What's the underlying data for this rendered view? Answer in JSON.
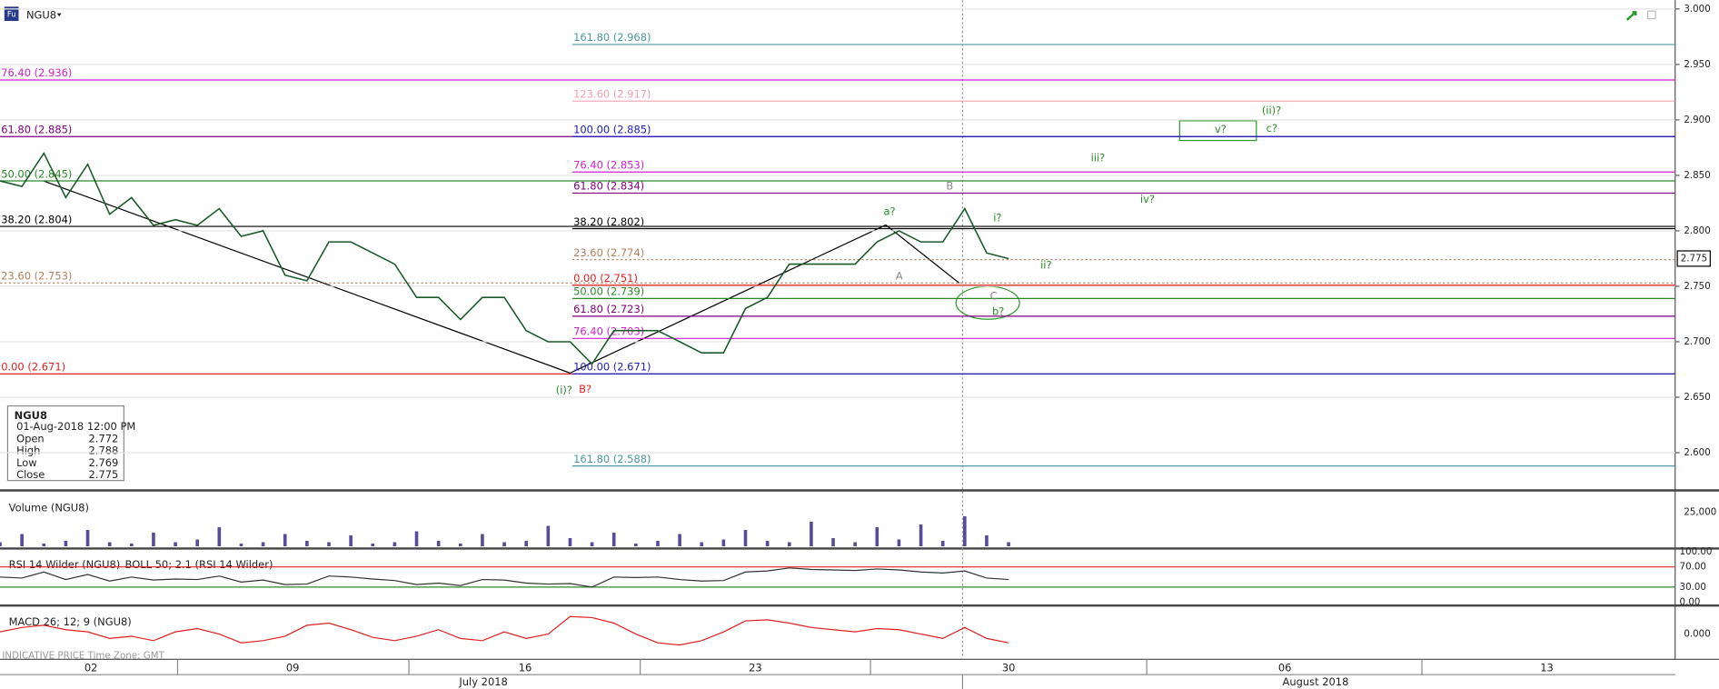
{
  "symbol": "NGU8",
  "price_axis": {
    "ylim": [
      2.567,
      3.008
    ],
    "ticks": [
      {
        "value": 3.0,
        "label": "3.000"
      },
      {
        "value": 2.95,
        "label": "2.950"
      },
      {
        "value": 2.9,
        "label": "2.900"
      },
      {
        "value": 2.85,
        "label": "2.850"
      },
      {
        "value": 2.8,
        "label": "2.800"
      },
      {
        "value": 2.75,
        "label": "2.750"
      },
      {
        "value": 2.7,
        "label": "2.700"
      },
      {
        "value": 2.65,
        "label": "2.650"
      },
      {
        "value": 2.6,
        "label": "2.600"
      }
    ]
  },
  "current_price": 2.775,
  "fib_left": [
    {
      "value": 2.936,
      "label": "76.40 (2.936)",
      "color": "#d020d0"
    },
    {
      "value": 2.885,
      "label": "61.80 (2.885)",
      "color": "#800080"
    },
    {
      "value": 2.845,
      "label": "50.00 (2.845)",
      "color": "#2a8a2a"
    },
    {
      "value": 2.804,
      "label": "38.20 (2.804)",
      "color": "#000000"
    },
    {
      "value": 2.753,
      "label": "23.60 (2.753)",
      "color": "#b08060"
    },
    {
      "value": 2.671,
      "label": "0.00 (2.671)",
      "color": "#e02020"
    }
  ],
  "fib_right": [
    {
      "value": 2.968,
      "label": "161.80 (2.968)",
      "color": "#4a9aa0"
    },
    {
      "value": 2.917,
      "label": "123.60 (2.917)",
      "color": "#f0a0b0"
    },
    {
      "value": 2.885,
      "label": "100.00 (2.885)",
      "color": "#2020c0"
    },
    {
      "value": 2.853,
      "label": "76.40 (2.853)",
      "color": "#d020d0"
    },
    {
      "value": 2.834,
      "label": "61.80 (2.834)",
      "color": "#800080"
    },
    {
      "value": 2.802,
      "label": "38.20 (2.802)",
      "color": "#000000"
    },
    {
      "value": 2.774,
      "label": "23.60 (2.774)",
      "color": "#b08060"
    },
    {
      "value": 2.751,
      "label": "0.00 (2.751)",
      "color": "#e02020"
    },
    {
      "value": 2.739,
      "label": "50.00 (2.739)",
      "color": "#2a8a2a"
    },
    {
      "value": 2.723,
      "label": "61.80 (2.723)",
      "color": "#800080"
    },
    {
      "value": 2.703,
      "label": "76.40 (2.703)",
      "color": "#d020d0"
    },
    {
      "value": 2.671,
      "label": "100.00 (2.671)",
      "color": "#2020c0"
    },
    {
      "value": 2.588,
      "label": "161.80 (2.588)",
      "color": "#4a9aa0"
    }
  ],
  "waves": [
    {
      "text": "(i)?",
      "color": "#2a8a2a"
    },
    {
      "text": "B?",
      "color": "#e02020"
    },
    {
      "text": "a?",
      "color": "#2a8a2a"
    },
    {
      "text": "B",
      "color": "#888888"
    },
    {
      "text": "A",
      "color": "#888888"
    },
    {
      "text": "i?",
      "color": "#2a8a2a"
    },
    {
      "text": "ii?",
      "color": "#2a8a2a"
    },
    {
      "text": "C",
      "color": "#888888"
    },
    {
      "text": "b?",
      "color": "#2a8a2a"
    },
    {
      "text": "iii?",
      "color": "#2a8a2a"
    },
    {
      "text": "iv?",
      "color": "#2a8a2a"
    },
    {
      "text": "v?",
      "color": "#2a8a2a"
    },
    {
      "text": "(ii)?",
      "color": "#2a8a2a"
    },
    {
      "text": "c?",
      "color": "#2a8a2a"
    }
  ],
  "price": {
    "color": "#1a5a2a",
    "values": [
      2.845,
      2.84,
      2.87,
      2.83,
      2.86,
      2.815,
      2.83,
      2.805,
      2.81,
      2.805,
      2.82,
      2.795,
      2.8,
      2.76,
      2.755,
      2.79,
      2.79,
      2.78,
      2.77,
      2.74,
      2.74,
      2.72,
      2.74,
      2.74,
      2.71,
      2.7,
      2.7,
      2.68,
      2.71,
      2.71,
      2.71,
      2.7,
      2.69,
      2.69,
      2.73,
      2.74,
      2.77,
      2.77,
      2.77,
      2.77,
      2.79,
      2.8,
      2.79,
      2.79,
      2.82,
      2.78,
      2.775
    ]
  },
  "info": {
    "title": "NGU8",
    "datetime": "01-Aug-2018 12:00 PM",
    "rows": [
      [
        "Open",
        2.772
      ],
      [
        "High",
        2.788
      ],
      [
        "Low",
        2.769
      ],
      [
        "Close",
        2.775
      ]
    ]
  },
  "volume": {
    "title": "Volume (NGU8)",
    "ylim": [
      0,
      37000
    ],
    "ticks": [
      {
        "value": 25000,
        "label": "25,000"
      }
    ],
    "color": "#5a4a9a",
    "values": [
      3000,
      9000,
      2000,
      4000,
      12000,
      3000,
      2000,
      10000,
      3000,
      5000,
      14000,
      2000,
      3000,
      9000,
      4000,
      3000,
      8000,
      2000,
      3000,
      11000,
      4000,
      2000,
      9000,
      3000,
      4000,
      15000,
      6000,
      3000,
      10000,
      2000,
      4000,
      9000,
      3000,
      5000,
      12000,
      4000,
      3000,
      18000,
      6000,
      3000,
      14000,
      5000,
      16000,
      4000,
      22000,
      8000,
      3000
    ]
  },
  "rsi": {
    "title": "RSI 14 Wilder (NGU8)",
    "boll_title": "BOLL 50; 2.1 (RSI 14 Wilder)",
    "ylim": [
      0,
      100
    ],
    "ticks": [
      {
        "value": 100,
        "label": "100.00"
      },
      {
        "value": 70,
        "label": "70.00"
      },
      {
        "value": 30,
        "label": "30.00"
      },
      {
        "value": 0,
        "label": "0.00"
      }
    ],
    "values": [
      50,
      48,
      60,
      45,
      55,
      42,
      50,
      44,
      46,
      45,
      52,
      40,
      44,
      35,
      36,
      52,
      50,
      46,
      43,
      35,
      38,
      33,
      45,
      44,
      38,
      36,
      37,
      30,
      50,
      49,
      50,
      45,
      42,
      43,
      60,
      62,
      68,
      65,
      64,
      63,
      66,
      64,
      60,
      58,
      62,
      48,
      45
    ]
  },
  "macd": {
    "title": "MACD 26; 12; 9 (NGU8)",
    "ylim": [
      -0.02,
      0.02
    ],
    "ticks": [
      {
        "value": 0,
        "label": "0.000"
      }
    ],
    "values": [
      0.002,
      0.006,
      0.008,
      0.004,
      0.002,
      -0.004,
      -0.002,
      -0.006,
      0.002,
      0.005,
      0.0,
      -0.008,
      -0.006,
      -0.002,
      0.008,
      0.01,
      0.004,
      -0.003,
      -0.006,
      -0.002,
      0.004,
      -0.004,
      -0.006,
      0.002,
      -0.004,
      0.0,
      0.016,
      0.015,
      0.01,
      0.0,
      -0.008,
      -0.01,
      -0.006,
      0.002,
      0.012,
      0.013,
      0.01,
      0.006,
      0.004,
      0.002,
      0.005,
      0.004,
      0.0,
      -0.004,
      0.006,
      -0.004,
      -0.008
    ]
  },
  "footer": "INDICATIVE PRICE   Time Zone: GMT",
  "dates": [
    "02",
    "09",
    "16",
    "23",
    "30",
    "06",
    "13"
  ],
  "months": [
    "July 2018",
    "August 2018"
  ]
}
